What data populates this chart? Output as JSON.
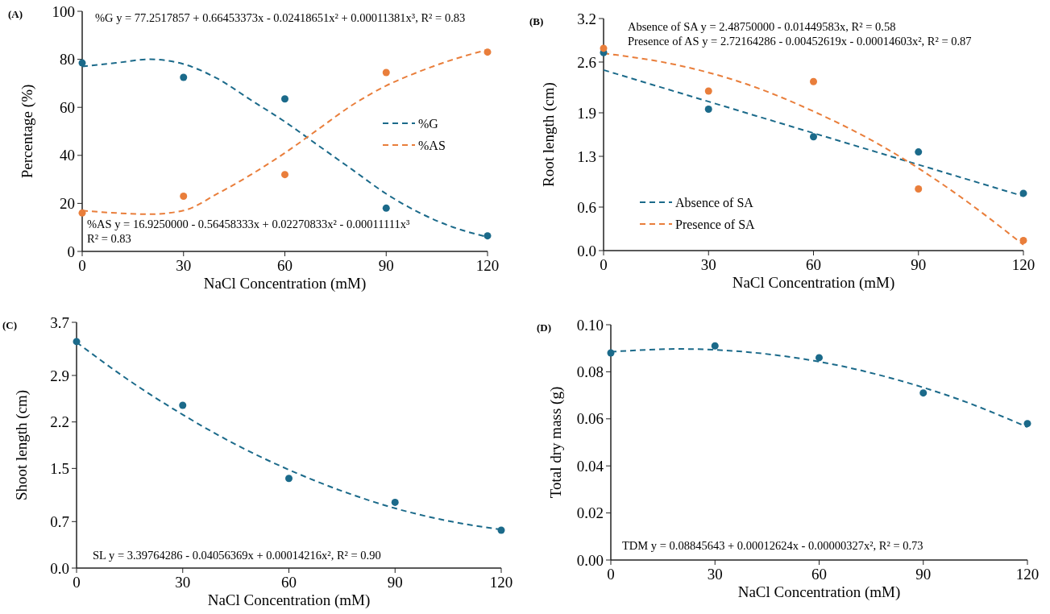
{
  "chart_data": [
    {
      "type": "scatter",
      "title": "(A)",
      "xlabel": "NaCl Concentration (mM)",
      "ylabel": "Percentage (%)",
      "xlim": [
        0,
        120
      ],
      "xticks": [
        0,
        30,
        60,
        90,
        120
      ],
      "ylim": [
        0,
        100
      ],
      "yticks": [
        0,
        20,
        40,
        60,
        80,
        100
      ],
      "grid": false,
      "legend": "right",
      "annotations": [
        "%G y = 77.2517857  + 0.66453373x  - 0.02418651x²  + 0.00011381x³,  R² = 0.83",
        "%AS y = 16.9250000  - 0.56458333x  + 0.02270833x²  - 0.00011111x³",
        "R² = 0.83"
      ],
      "series": [
        {
          "color": "#1b6a8a",
          "marker": "circle",
          "x": [
            0,
            30,
            60,
            90,
            120
          ],
          "values": [
            78.5,
            72.5,
            63.5,
            18,
            6.5
          ]
        },
        {
          "color": "#e97e3b",
          "marker": "circle",
          "x": [
            0,
            30,
            60,
            90,
            120
          ],
          "values": [
            16,
            23,
            32,
            74.5,
            83
          ]
        },
        {
          "type": "line",
          "name": "%G",
          "color": "#1b6a8a",
          "marker": "none",
          "line_style": "dashed",
          "x": [
            0,
            10,
            20,
            30,
            40,
            50,
            60,
            70,
            80,
            90,
            100,
            110,
            120
          ],
          "values": [
            77,
            78.5,
            80,
            78,
            72,
            63,
            54,
            44,
            34,
            24,
            16,
            10,
            6
          ]
        },
        {
          "type": "line",
          "name": "%AS",
          "color": "#e97e3b",
          "marker": "none",
          "line_style": "dashed",
          "x": [
            0,
            10,
            20,
            30,
            40,
            50,
            60,
            70,
            80,
            90,
            100,
            110,
            120
          ],
          "values": [
            17,
            16,
            15.5,
            17,
            24,
            32,
            41,
            51,
            61,
            69,
            75,
            80,
            84
          ]
        }
      ]
    },
    {
      "type": "scatter",
      "title": "(B)",
      "xlabel": "NaCl Concentration (mM)",
      "ylabel": "Root  length (cm)",
      "xlim": [
        0,
        120
      ],
      "xticks": [
        0,
        30,
        60,
        90,
        120
      ],
      "ylim": [
        0,
        3.2
      ],
      "yticks": [
        {
          "value": 0,
          "label": "0.0"
        },
        0.6,
        1.3,
        1.9,
        2.6,
        3.2
      ],
      "grid": false,
      "legend": "bottom left",
      "annotations": [
        "Absence of SA y = 2.48750000  - 0.01449583x,  R² = 0.58",
        "Presence of AS y = 2.72164286  - 0.00452619x  - 0.00014603x²,  R² = 0.87"
      ],
      "series": [
        {
          "color": "#1b6a8a",
          "marker": "circle",
          "x": [
            0,
            30,
            60,
            90,
            120
          ],
          "values": [
            2.73,
            1.95,
            1.57,
            1.36,
            0.79
          ]
        },
        {
          "color": "#e97e3b",
          "marker": "circle",
          "x": [
            0,
            30,
            60,
            90,
            120
          ],
          "values": [
            2.79,
            2.2,
            2.33,
            0.85,
            0.14
          ]
        },
        {
          "type": "line",
          "name": "Absence of SA",
          "color": "#1b6a8a",
          "marker": "none",
          "line_style": "dashed",
          "x": [
            0,
            120
          ],
          "values": [
            2.49,
            0.75
          ]
        },
        {
          "type": "line",
          "name": "Presence of SA",
          "color": "#e97e3b",
          "marker": "none",
          "line_style": "dashed",
          "x": [
            0,
            20,
            40,
            60,
            80,
            100,
            120
          ],
          "values": [
            2.72,
            2.57,
            2.31,
            1.92,
            1.43,
            0.81,
            0.08
          ]
        }
      ]
    },
    {
      "type": "scatter",
      "title": "(C)",
      "xlabel": "NaCl Concentration (mM)",
      "ylabel": "Shoot length (cm)",
      "xlim": [
        0,
        120
      ],
      "xticks": [
        0,
        30,
        60,
        90,
        120
      ],
      "ylim": [
        0,
        3.7
      ],
      "yticks": [
        {
          "value": 0,
          "label": "0.0"
        },
        0.7,
        1.5,
        2.2,
        2.9,
        3.7
      ],
      "grid": false,
      "annotations": [
        "SL y = 3.39764286 - 0.04056369x + 0.00014216x², R² = 0.90"
      ],
      "series": [
        {
          "color": "#1b6a8a",
          "marker": "circle",
          "x": [
            0,
            30,
            60,
            90,
            120
          ],
          "values": [
            3.41,
            2.45,
            1.35,
            0.99,
            0.57
          ]
        },
        {
          "type": "line",
          "color": "#1b6a8a",
          "marker": "none",
          "line_style": "dashed",
          "x": [
            0,
            15,
            30,
            45,
            60,
            75,
            90,
            105,
            120
          ],
          "values": [
            3.4,
            2.82,
            2.31,
            1.86,
            1.48,
            1.16,
            0.9,
            0.71,
            0.58
          ]
        }
      ]
    },
    {
      "type": "scatter",
      "title": "(D)",
      "xlabel": "NaCl Concentration (mM)",
      "ylabel": "Total dry mass (g)",
      "xlim": [
        0,
        120
      ],
      "xticks": [
        0,
        30,
        60,
        90,
        120
      ],
      "ylim": [
        0,
        0.1
      ],
      "yticks": [
        {
          "value": 0,
          "label": "0.00"
        },
        {
          "value": 0.02,
          "label": "0.02"
        },
        {
          "value": 0.04,
          "label": "0.04"
        },
        {
          "value": 0.06,
          "label": "0.06"
        },
        {
          "value": 0.08,
          "label": "0.08"
        },
        {
          "value": 0.1,
          "label": "0.10"
        }
      ],
      "grid": false,
      "annotations": [
        "TDM y = 0.08845643 + 0.00012624x - 0.00000327x², R² = 0.73"
      ],
      "series": [
        {
          "color": "#1b6a8a",
          "marker": "circle",
          "x": [
            0,
            30,
            60,
            90,
            120
          ],
          "values": [
            0.088,
            0.091,
            0.086,
            0.071,
            0.058
          ]
        },
        {
          "type": "line",
          "color": "#1b6a8a",
          "marker": "none",
          "line_style": "dashed",
          "x": [
            0,
            20,
            40,
            60,
            80,
            100,
            120
          ],
          "values": [
            0.0885,
            0.0897,
            0.0883,
            0.0843,
            0.0776,
            0.0684,
            0.0565
          ]
        }
      ]
    }
  ]
}
